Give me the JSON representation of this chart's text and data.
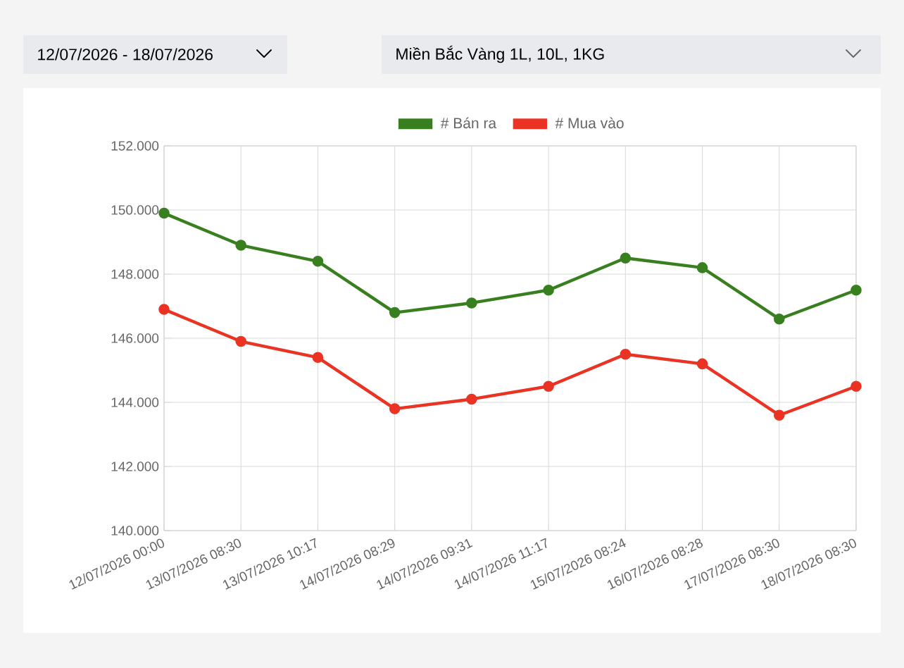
{
  "chart_data": {
    "type": "line",
    "annotations": [
      "12/07/2026 - 18/07/2026",
      "Miền Bắc Vàng 1L, 10L, 1KG"
    ],
    "categories": [
      "12/07/2026 00:00",
      "13/07/2026 08:30",
      "13/07/2026 10:17",
      "14/07/2026 08:29",
      "14/07/2026 09:31",
      "14/07/2026 11:17",
      "15/07/2026 08:24",
      "16/07/2026 08:28",
      "17/07/2026 08:30",
      "18/07/2026 08:30"
    ],
    "series": [
      {
        "name": "# Bán ra",
        "color": "#38801f",
        "values": [
          149900,
          148900,
          148400,
          146800,
          147100,
          147500,
          148500,
          148200,
          146600,
          147500
        ]
      },
      {
        "name": "# Mua vào",
        "color": "#ea3323",
        "values": [
          146900,
          145900,
          145400,
          143800,
          144100,
          144500,
          145500,
          145200,
          143600,
          144500
        ]
      }
    ],
    "ylim": [
      140000,
      152000
    ],
    "yticks": [
      {
        "value": 140000,
        "label": "140.000"
      },
      {
        "value": 142000,
        "label": "142.000"
      },
      {
        "value": 144000,
        "label": "144.000"
      },
      {
        "value": 146000,
        "label": "146.000"
      },
      {
        "value": 148000,
        "label": "148.000"
      },
      {
        "value": 150000,
        "label": "150.000"
      },
      {
        "value": 152000,
        "label": "152.000"
      }
    ],
    "grid": true,
    "legend": "top",
    "marker": "circle",
    "line_style": "solid"
  }
}
